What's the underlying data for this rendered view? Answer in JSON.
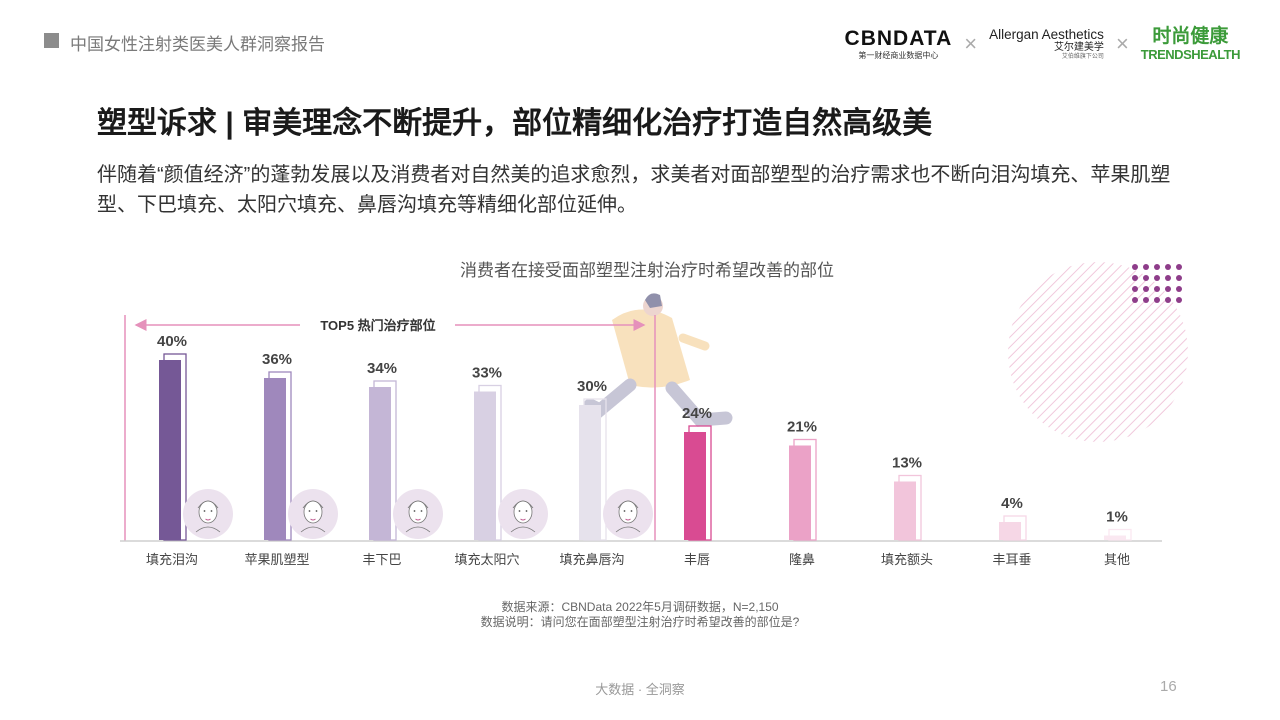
{
  "header": {
    "report_title": "中国女性注射类医美人群洞察报告",
    "logos": {
      "cbn_main": "CBNDATA",
      "cbn_sub": "第一财经商业数据中心",
      "separator": "×",
      "allergan_main": "Allergan Aesthetics",
      "allergan_sub": "艾尔建美学",
      "allergan_tiny": "艾伯维旗下公司",
      "trends_main": "时尚健康",
      "trends_sub": "TRENDSHEALTH"
    }
  },
  "main_title": "塑型诉求 | 审美理念不断提升，部位精细化治疗打造自然高级美",
  "subtitle": "伴随着“颜值经济”的蓬勃发展以及消费者对自然美的追求愈烈，求美者对面部塑型的治疗需求也不断向泪沟填充、苹果肌塑型、下巴填充、太阳穴填充、鼻唇沟填充等精细化部位延伸。",
  "chart_data": {
    "type": "bar",
    "title": "消费者在接受面部塑型注射治疗时希望改善的部位",
    "categories": [
      "填充泪沟",
      "苹果肌塑型",
      "丰下巴",
      "填充太阳穴",
      "填充鼻唇沟",
      "丰唇",
      "隆鼻",
      "填充额头",
      "丰耳垂",
      "其他"
    ],
    "values": [
      40,
      36,
      34,
      33,
      30,
      24,
      21,
      13,
      4,
      1
    ],
    "value_labels": [
      "40%",
      "36%",
      "34%",
      "33%",
      "30%",
      "24%",
      "21%",
      "13%",
      "4%",
      "1%"
    ],
    "unit": "%",
    "ylim": [
      0,
      45
    ],
    "bar_colors": [
      "#755896",
      "#9f88bc",
      "#c4b6d6",
      "#d8d0e3",
      "#e6e2ec",
      "#d94b92",
      "#eba2c7",
      "#f2c5db",
      "#f6d7e6",
      "#fae8f1"
    ],
    "annotation": {
      "label": "TOP5 热门治疗部位",
      "spans_categories": 5,
      "color": "#e591bb"
    },
    "grid": false,
    "legend": "none"
  },
  "notes": {
    "source": "数据来源：CBNData 2022年5月调研数据，N=2,150",
    "description": "数据说明：请问您在面部塑型注射治疗时希望改善的部位是?"
  },
  "footer": {
    "center_text": "大数据 · 全洞察",
    "page_number": "16"
  },
  "colors": {
    "accent_purple": "#755896",
    "accent_pink": "#d94b92",
    "dot_purple": "#8e3d8a"
  }
}
